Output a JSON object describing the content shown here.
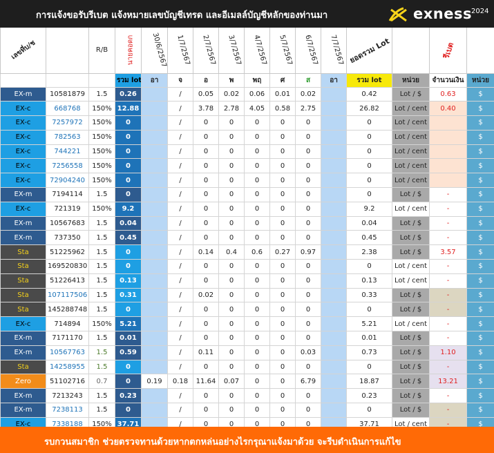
{
  "header": {
    "title": "การแจ้งขอรับรีเบต  แจ้งหมายเลขบัญชีเทรด และอีเมลล์บัญชีหลักของท่านมา",
    "brand": "exness",
    "year": "2024"
  },
  "columns": {
    "date_label": "เลขที่บ/ช",
    "rb": "R/B",
    "brand_vertical": "นายคอดก",
    "dates": [
      "30/6/2567",
      "1/7/2567",
      "2/7/2567",
      "3/7/2567",
      "4/7/2567",
      "5/7/2567",
      "6/7/2567",
      "7/7/2567"
    ],
    "sum_lot": "ยอดรวม Lot",
    "rebate": "รีเบต"
  },
  "subheader": {
    "total_lot": "รวม lot",
    "days": [
      "อา",
      "จ",
      "อ",
      "พ",
      "พฤ",
      "ศ",
      "ส",
      "อา"
    ],
    "sum_lot": "รวม lot",
    "unit": "หน่วย",
    "amount": "จำนวนเงิน",
    "unit2": "หน่วย"
  },
  "rows": [
    {
      "type": "EX-m",
      "acct": "10581879",
      "rb": "1.5",
      "lot": "0.26",
      "d": [
        "",
        "/",
        "0.05",
        "0.02",
        "0.06",
        "0.01",
        "0.02",
        ""
      ],
      "sum": "0.42",
      "unit": "Lot / $",
      "amt": "0.63",
      "cur": "$"
    },
    {
      "type": "EX-c",
      "acct": "668768",
      "rb": "150%",
      "lot": "12.88",
      "d": [
        "",
        "/",
        "3.78",
        "2.78",
        "4.05",
        "0.58",
        "2.75",
        ""
      ],
      "sum": "26.82",
      "unit": "Lot / cent",
      "amt": "0.40",
      "cur": "$"
    },
    {
      "type": "EX-c",
      "acct": "7257972",
      "rb": "150%",
      "lot": "0",
      "d": [
        "",
        "/",
        "0",
        "0",
        "0",
        "0",
        "0",
        ""
      ],
      "sum": "0",
      "unit": "Lot / cent",
      "amt": "",
      "cur": "$"
    },
    {
      "type": "EX-c",
      "acct": "782563",
      "rb": "150%",
      "lot": "0",
      "d": [
        "",
        "/",
        "0",
        "0",
        "0",
        "0",
        "0",
        ""
      ],
      "sum": "0",
      "unit": "Lot / cent",
      "amt": "",
      "cur": "$"
    },
    {
      "type": "EX-c",
      "acct": "744221",
      "rb": "150%",
      "lot": "0",
      "d": [
        "",
        "/",
        "0",
        "0",
        "0",
        "0",
        "0",
        ""
      ],
      "sum": "0",
      "unit": "Lot / cent",
      "amt": "",
      "cur": "$"
    },
    {
      "type": "EX-c",
      "acct": "7256558",
      "rb": "150%",
      "lot": "0",
      "d": [
        "",
        "/",
        "0",
        "0",
        "0",
        "0",
        "0",
        ""
      ],
      "sum": "0",
      "unit": "Lot / cent",
      "amt": "",
      "cur": "$"
    },
    {
      "type": "EX-c",
      "acct": "72904240",
      "rb": "150%",
      "lot": "0",
      "d": [
        "",
        "/",
        "0",
        "0",
        "0",
        "0",
        "0",
        ""
      ],
      "sum": "0",
      "unit": "Lot / cent",
      "amt": "",
      "cur": "$"
    },
    {
      "type": "EX-m",
      "acct": "7194114",
      "rb": "1.5",
      "lot": "0",
      "d": [
        "",
        "/",
        "0",
        "0",
        "0",
        "0",
        "0",
        ""
      ],
      "sum": "0",
      "unit": "Lot / $",
      "amt": "-",
      "cur": "$"
    },
    {
      "type": "EX-c",
      "acct": "721319",
      "rb": "150%",
      "lot": "9.2",
      "d": [
        "",
        "/",
        "0",
        "0",
        "0",
        "0",
        "0",
        ""
      ],
      "sum": "9.2",
      "unit": "Lot / cent",
      "amt": "-",
      "cur": "$"
    },
    {
      "type": "EX-m",
      "acct": "10567683",
      "rb": "1.5",
      "lot": "0.04",
      "d": [
        "",
        "/",
        "0",
        "0",
        "0",
        "0",
        "0",
        ""
      ],
      "sum": "0.04",
      "unit": "Lot / $",
      "amt": "-",
      "cur": "$"
    },
    {
      "type": "EX-m",
      "acct": "737350",
      "rb": "1.5",
      "lot": "0.45",
      "d": [
        "",
        "/",
        "0",
        "0",
        "0",
        "0",
        "0",
        ""
      ],
      "sum": "0.45",
      "unit": "Lot / $",
      "amt": "-",
      "cur": "$"
    },
    {
      "type": "Sta",
      "acct": "51225962",
      "rb": "1.5",
      "lot": "0",
      "d": [
        "",
        "/",
        "0.14",
        "0.4",
        "0.6",
        "0.27",
        "0.97",
        ""
      ],
      "sum": "2.38",
      "unit": "Lot / $",
      "amt": "3.57",
      "cur": "$"
    },
    {
      "type": "Sta",
      "acct": "169520830",
      "rb": "1.5",
      "lot": "0",
      "d": [
        "",
        "/",
        "0",
        "0",
        "0",
        "0",
        "0",
        ""
      ],
      "sum": "0",
      "unit": "Lot / cent",
      "amt": "-",
      "cur": "$"
    },
    {
      "type": "Sta",
      "acct": "51226413",
      "rb": "1.5",
      "lot": "0.13",
      "d": [
        "",
        "/",
        "0",
        "0",
        "0",
        "0",
        "0",
        ""
      ],
      "sum": "0.13",
      "unit": "Lot / cent",
      "amt": "-",
      "cur": "$"
    },
    {
      "type": "Sta",
      "acct": "107117506",
      "rb": "1.5",
      "lot": "0.31",
      "d": [
        "",
        "/",
        "0.02",
        "0",
        "0",
        "0",
        "0",
        ""
      ],
      "sum": "0.33",
      "unit": "Lot / $",
      "amt": "-",
      "cur": "$"
    },
    {
      "type": "Sta",
      "acct": "145288748",
      "rb": "1.5",
      "lot": "0",
      "d": [
        "",
        "/",
        "0",
        "0",
        "0",
        "0",
        "0",
        ""
      ],
      "sum": "0",
      "unit": "Lot / $",
      "amt": "-",
      "cur": "$"
    },
    {
      "type": "EX-c",
      "acct": "714894",
      "rb": "150%",
      "lot": "5.21",
      "d": [
        "",
        "/",
        "0",
        "0",
        "0",
        "0",
        "0",
        ""
      ],
      "sum": "5.21",
      "unit": "Lot / cent",
      "amt": "-",
      "cur": "$"
    },
    {
      "type": "EX-m",
      "acct": "7171170",
      "rb": "1.5",
      "lot": "0.01",
      "d": [
        "",
        "/",
        "0",
        "0",
        "0",
        "0",
        "0",
        ""
      ],
      "sum": "0.01",
      "unit": "Lot / $",
      "amt": "-",
      "cur": "$"
    },
    {
      "type": "EX-m",
      "acct": "10567763",
      "rb": "1.5",
      "lot": "0.59",
      "d": [
        "",
        "/",
        "0.11",
        "0",
        "0",
        "0",
        "0.03",
        ""
      ],
      "sum": "0.73",
      "unit": "Lot / $",
      "amt": "1.10",
      "cur": "$"
    },
    {
      "type": "Sta",
      "acct": "14258955",
      "rb": "1.5",
      "lot": "0",
      "d": [
        "",
        "/",
        "0",
        "0",
        "0",
        "0",
        "0",
        ""
      ],
      "sum": "0",
      "unit": "Lot / $",
      "amt": "-",
      "cur": "$"
    },
    {
      "type": "Zero",
      "acct": "51102716",
      "rb": "0.7",
      "lot": "0",
      "d": [
        "0.19",
        "0.18",
        "11.64",
        "0.07",
        "0",
        "0",
        "6.79",
        ""
      ],
      "sum": "18.87",
      "unit": "Lot / $",
      "amt": "13.21",
      "cur": "$"
    },
    {
      "type": "EX-m",
      "acct": "7213243",
      "rb": "1.5",
      "lot": "0.23",
      "d": [
        "",
        "/",
        "0",
        "0",
        "0",
        "0",
        "0",
        ""
      ],
      "sum": "0.23",
      "unit": "Lot / $",
      "amt": "-",
      "cur": "$"
    },
    {
      "type": "EX-m",
      "acct": "7238113",
      "rb": "1.5",
      "lot": "0",
      "d": [
        "",
        "/",
        "0",
        "0",
        "0",
        "0",
        "0",
        ""
      ],
      "sum": "0",
      "unit": "Lot / $",
      "amt": "-",
      "cur": "$"
    },
    {
      "type": "EX-c",
      "acct": "7338188",
      "rb": "150%",
      "lot": "37.71",
      "d": [
        "",
        "/",
        "0",
        "0",
        "0",
        "0",
        "0",
        ""
      ],
      "sum": "37.71",
      "unit": "Lot / cent",
      "amt": "-",
      "cur": "$"
    }
  ],
  "footer": {
    "message": "รบกวนสมาชิก ช่วยตรวจทานด้วยหากตกหล่นอย่างไรกรุณาแจ้งมาด้วย จะรีบดำเนินการแก้ไข"
  },
  "colors": {
    "topbar": "#1e1e1e",
    "footer": "#ff6a06",
    "exm": "#2e5b8f",
    "exc": "#1e9fe3",
    "sta_text": "#f7d31a",
    "zero": "#f28c1a",
    "rebate_red": "#e02020"
  },
  "icons": {
    "logo": "exness-logo-icon"
  }
}
